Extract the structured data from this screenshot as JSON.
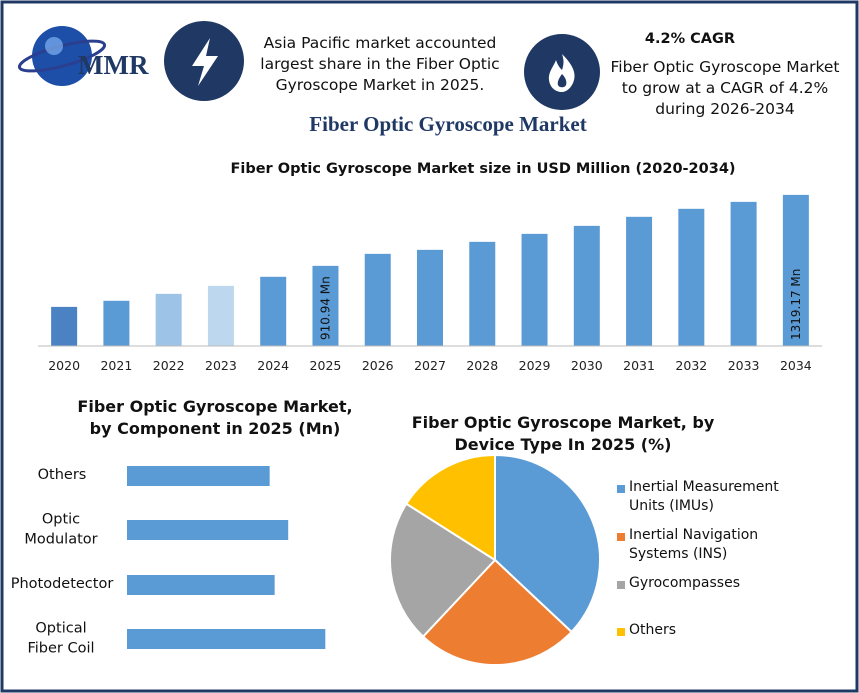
{
  "header": {
    "logo": "MMR",
    "note": "Asia Pacific market accounted largest share in the Fiber Optic Gyroscope Market in 2025.",
    "cagr_title": "4.2% CAGR",
    "cagr_text": "Fiber Optic Gyroscope Market to grow at a CAGR of 4.2% during 2026-2034",
    "title": "Fiber Optic Gyroscope Market"
  },
  "chart_data": [
    {
      "type": "bar",
      "title": "Fiber Optic Gyroscope Market size in USD Million (2020-2034)",
      "categories": [
        "2020",
        "2021",
        "2022",
        "2023",
        "2024",
        "2025",
        "2026",
        "2027",
        "2028",
        "2029",
        "2030",
        "2031",
        "2032",
        "2033",
        "2034"
      ],
      "values": [
        675,
        710,
        750,
        796,
        848,
        910.94,
        980,
        1003,
        1049,
        1095,
        1141,
        1193,
        1239,
        1279,
        1319.17
      ],
      "value_labels": [
        null,
        null,
        null,
        null,
        null,
        "910.94 Mn",
        null,
        null,
        null,
        null,
        null,
        null,
        null,
        null,
        "1319.17 Mn"
      ],
      "colors": [
        "#4a82c4",
        "#5b9bd5",
        "#9dc3e6",
        "#bdd7ee",
        "#5b9bd5",
        "#5b9bd5",
        "#5b9bd5",
        "#5b9bd5",
        "#5b9bd5",
        "#5b9bd5",
        "#5b9bd5",
        "#5b9bd5",
        "#5b9bd5",
        "#5b9bd5",
        "#5b9bd5"
      ],
      "ylim": [
        450,
        1330
      ]
    },
    {
      "type": "hbar",
      "title": "Fiber Optic Gyroscope Market, by Component in 2025 (Mn)",
      "categories": [
        "Others",
        "Optic Modulator",
        "Photodetector",
        "Optical Fiber Coil"
      ],
      "values": [
        200,
        226,
        207,
        278
      ],
      "color": "#5b9bd5",
      "xlim": [
        0,
        300
      ]
    },
    {
      "type": "pie",
      "title": "Fiber Optic Gyroscope Market, by Device Type In 2025 (%)",
      "categories": [
        "Inertial Measurement Units (IMUs)",
        "Inertial Navigation Systems (INS)",
        "Gyrocompasses",
        "Others"
      ],
      "values": [
        37,
        25,
        22,
        16
      ],
      "colors": [
        "#5b9bd5",
        "#ed7d31",
        "#a5a5a5",
        "#ffc000"
      ],
      "legend": "right"
    }
  ]
}
